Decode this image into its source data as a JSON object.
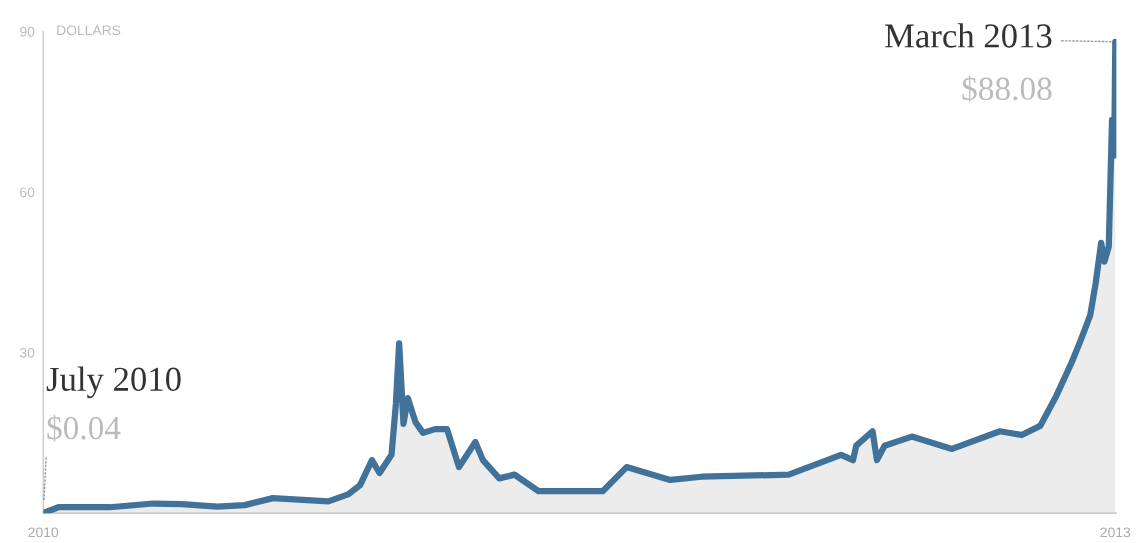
{
  "chart_data": {
    "type": "area",
    "ylabel": "DOLLARS",
    "x": [
      "2010-07-17",
      "2010-07-31",
      "2010-09-16",
      "2010-10-26",
      "2010-11-21",
      "2010-12-24",
      "2011-01-18",
      "2011-02-13",
      "2011-04-05",
      "2011-04-23",
      "2011-05-04",
      "2011-05-15",
      "2011-05-22",
      "2011-06-02",
      "2011-06-06",
      "2011-06-09",
      "2011-06-13",
      "2011-06-17",
      "2011-06-24",
      "2011-07-01",
      "2011-07-12",
      "2011-07-23",
      "2011-08-03",
      "2011-08-18",
      "2011-08-25",
      "2011-09-09",
      "2011-09-23",
      "2011-10-15",
      "2011-11-10",
      "2011-12-13",
      "2012-01-04",
      "2012-02-13",
      "2012-03-13",
      "2012-06-01",
      "2012-07-19",
      "2012-07-30",
      "2012-08-02",
      "2012-08-17",
      "2012-08-21",
      "2012-08-28",
      "2012-09-22",
      "2012-10-29",
      "2012-12-12",
      "2013-01-01",
      "2013-01-18",
      "2013-02-02",
      "2013-02-16",
      "2013-02-24",
      "2013-03-05",
      "2013-03-10",
      "2013-03-15",
      "2013-03-18",
      "2013-03-22",
      "2013-03-25",
      "2013-03-27",
      "2013-03-28"
    ],
    "series": [
      {
        "color": "#41729a",
        "values": [
          0.04,
          1.1,
          1.1,
          1.8,
          1.7,
          1.2,
          1.5,
          2.8,
          2.2,
          3.5,
          5.2,
          9.9,
          7.5,
          10.9,
          20.4,
          31.7,
          16.7,
          21.5,
          17,
          15,
          15.7,
          15.7,
          8.6,
          13.3,
          9.9,
          6.5,
          7.2,
          4.1,
          4.1,
          4.1,
          8.6,
          6.2,
          6.8,
          7.2,
          10.9,
          9.9,
          12.6,
          15.3,
          9.9,
          12.6,
          14.3,
          12,
          15.3,
          14.6,
          16.3,
          22,
          28.2,
          32.2,
          37,
          43,
          50.5,
          47,
          49.8,
          73.5,
          66.8,
          88.08
        ]
      }
    ],
    "xlim": [
      "2010-07-17",
      "2013-03-29"
    ],
    "ylim": [
      0,
      90
    ],
    "yticks": [
      30,
      60,
      90
    ],
    "xticks": [
      {
        "value": "2010-07-17",
        "label": "2010"
      },
      {
        "value": "2013-03-28",
        "label": "2013"
      }
    ],
    "grid": false,
    "legend": false,
    "annotations": [
      "July 2010",
      {
        "text": "$0.04",
        "x": "2010-07-17",
        "y": 0.04
      },
      {
        "text": "March 2013",
        "x": "2013-03-28",
        "y": 88.08
      },
      {
        "text": "$88.08",
        "x": "2013-03-28",
        "y": 88.08
      }
    ]
  }
}
